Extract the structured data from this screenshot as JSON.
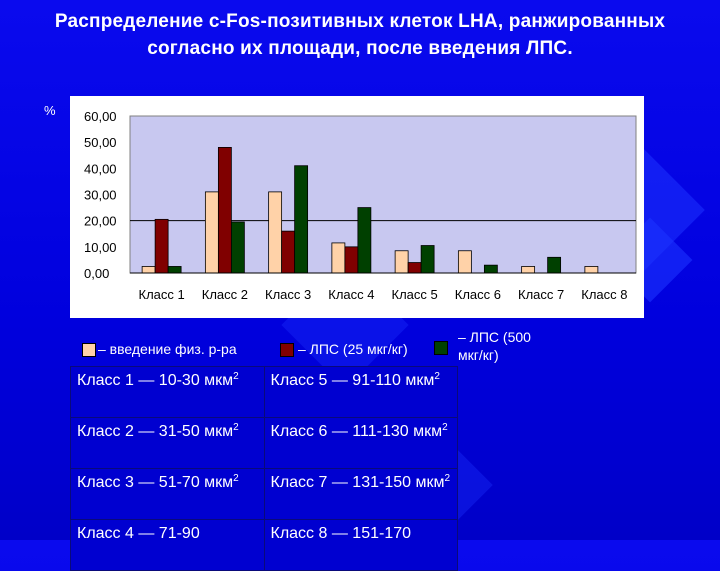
{
  "title": "Распределение с-Fos-позитивных клеток LHA, ранжированных согласно их площади, после введения ЛПС.",
  "y_unit_label": "%",
  "colors": {
    "background": "#0000e6",
    "plot_area": "#c8c8f0",
    "series1": "#ffd2a8",
    "series2": "#800000",
    "series3": "#004000"
  },
  "chart_data": {
    "type": "bar",
    "categories": [
      "Класс 1",
      "Класс 2",
      "Класс 3",
      "Класс 4",
      "Класс 5",
      "Класс 6",
      "Класс 7",
      "Класс 8"
    ],
    "series": [
      {
        "name": "– введение физ. р-ра",
        "values": [
          2.5,
          31,
          31,
          11.5,
          8.5,
          8.5,
          2.5,
          2.5
        ]
      },
      {
        "name": "– ЛПС (25 мкг/кг)",
        "values": [
          20.5,
          48,
          16,
          10,
          4,
          0,
          0,
          0
        ]
      },
      {
        "name": "– ЛПС (500 мкг/кг)",
        "values": [
          2.5,
          19.5,
          41,
          25,
          10.5,
          3,
          6,
          0
        ]
      }
    ],
    "y_ticks": [
      "0,00",
      "10,00",
      "20,00",
      "30,00",
      "40,00",
      "50,00",
      "60,00"
    ],
    "ylim": [
      0,
      60
    ],
    "grid": "single line at 20",
    "legend": "bottom",
    "xlabel": "",
    "ylabel": "%"
  },
  "legend_lines": {
    "s3_line1": "– ЛПС (500",
    "s3_line2": "мкг/кг)"
  },
  "table": [
    [
      {
        "text": "Класс 1 — 10-30 мкм",
        "sup": "2"
      },
      {
        "text": "Класс 5 — 91-110 мкм",
        "sup": "2"
      }
    ],
    [
      {
        "text": "Класс 2 — 31-50 мкм",
        "sup": "2"
      },
      {
        "text": "Класс 6 — 111-130 мкм",
        "sup": "2"
      }
    ],
    [
      {
        "text": "Класс 3 — 51-70 мкм",
        "sup": "2"
      },
      {
        "text": "Класс 7 — 131-150 мкм",
        "sup": "2"
      }
    ],
    [
      {
        "text": "Класс 4 — 71-90",
        "sup": ""
      },
      {
        "text": "Класс 8 — 151-170",
        "sup": ""
      }
    ]
  ]
}
